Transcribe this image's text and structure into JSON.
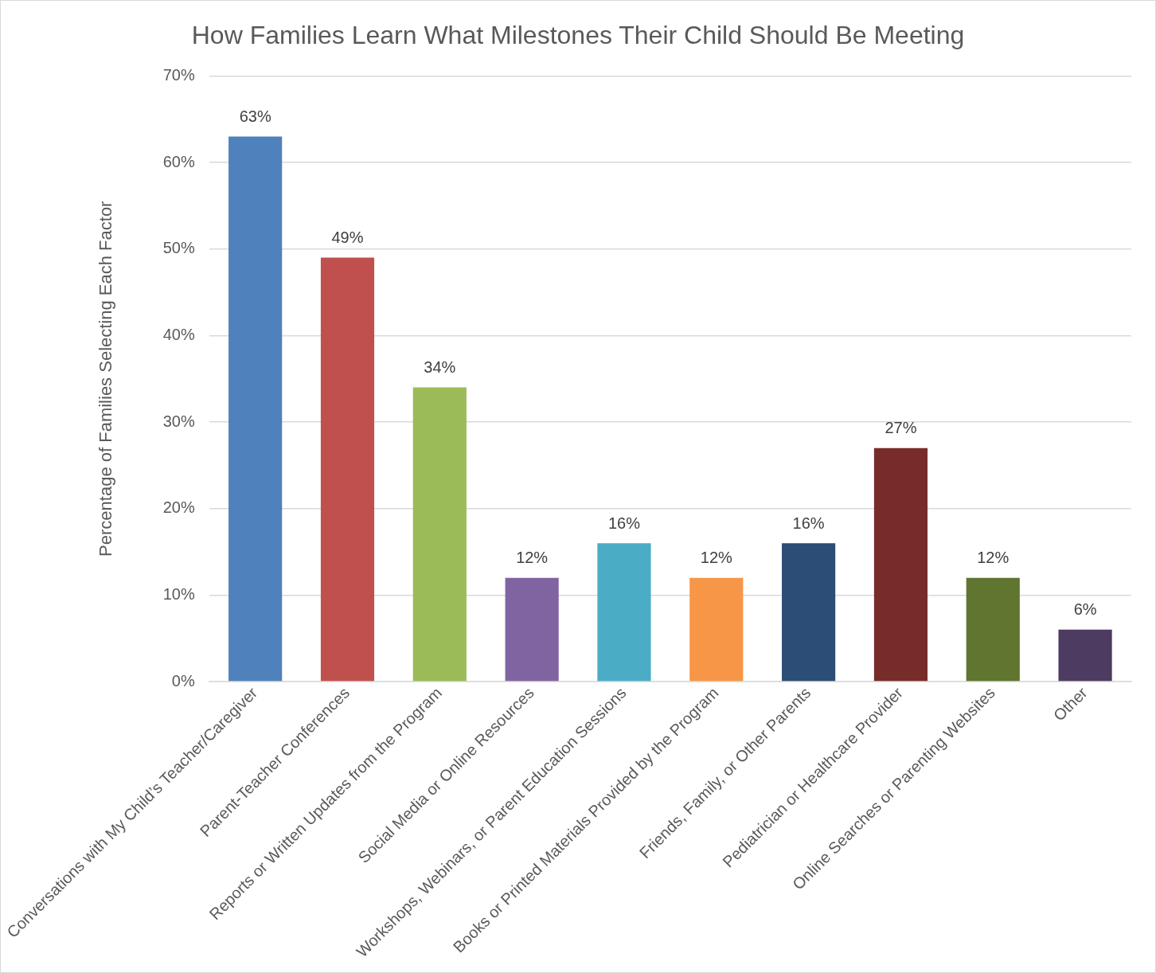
{
  "chart_data": {
    "type": "bar",
    "title": "How Families Learn What Milestones Their Child Should Be Meeting",
    "ylabel": "Percentage of Families Selecting Each Factor",
    "categories": [
      "Conversations with My Child’s Teacher/Caregiver",
      "Parent-Teacher Conferences",
      "Reports or Written Updates from the Program",
      "Social Media or Online Resources",
      "Workshops, Webinars, or Parent Education Sessions",
      "Books or Printed Materials Provided by the Program",
      "Friends, Family, or Other Parents",
      "Pediatrician or Healthcare Provider",
      "Online Searches or Parenting Websites",
      "Other"
    ],
    "values": [
      63,
      49,
      34,
      12,
      16,
      12,
      16,
      27,
      12,
      6
    ],
    "value_labels": [
      "63%",
      "49%",
      "34%",
      "12%",
      "16%",
      "12%",
      "16%",
      "27%",
      "12%",
      "6%"
    ],
    "colors": [
      "#4f81bd",
      "#c0504d",
      "#9bbb59",
      "#8064a2",
      "#4bacc6",
      "#f79646",
      "#2c4d75",
      "#772c2a",
      "#5f7530",
      "#4d3b62"
    ],
    "ylim": [
      0,
      70
    ],
    "yticks": [
      {
        "value": 0,
        "label": "0%"
      },
      {
        "value": 10,
        "label": "10%"
      },
      {
        "value": 20,
        "label": "20%"
      },
      {
        "value": 30,
        "label": "30%"
      },
      {
        "value": 40,
        "label": "40%"
      },
      {
        "value": 50,
        "label": "50%"
      },
      {
        "value": 60,
        "label": "60%"
      },
      {
        "value": 70,
        "label": "70%"
      }
    ],
    "grid": "y",
    "legend": false
  }
}
